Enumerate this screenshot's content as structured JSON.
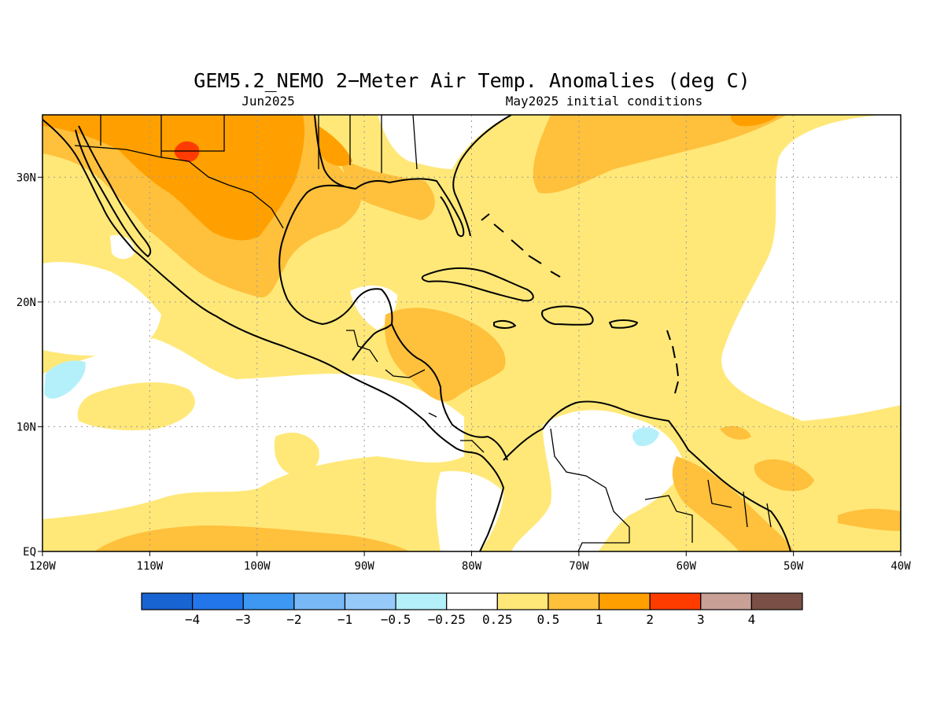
{
  "title": "GEM5.2_NEMO 2−Meter Air Temp. Anomalies (deg C)",
  "subtitle_left": "Jun2025",
  "subtitle_right": "May2025 initial conditions",
  "map": {
    "lon_range": [
      -120,
      -40
    ],
    "lat_range": [
      0,
      35
    ],
    "x_ticks": [
      {
        "lon": -120,
        "label": "120W"
      },
      {
        "lon": -110,
        "label": "110W"
      },
      {
        "lon": -100,
        "label": "100W"
      },
      {
        "lon": -90,
        "label": "90W"
      },
      {
        "lon": -80,
        "label": "80W"
      },
      {
        "lon": -70,
        "label": "70W"
      },
      {
        "lon": -60,
        "label": "60W"
      },
      {
        "lon": -50,
        "label": "50W"
      },
      {
        "lon": -40,
        "label": "40W"
      }
    ],
    "y_ticks": [
      {
        "lat": 0,
        "label": "EQ"
      },
      {
        "lat": 10,
        "label": "10N"
      },
      {
        "lat": 20,
        "label": "20N"
      },
      {
        "lat": 30,
        "label": "30N"
      }
    ],
    "grid": true
  },
  "colorbar": {
    "colors": [
      "#1864d2",
      "#2276ea",
      "#3c98f2",
      "#78b8f7",
      "#96caf9",
      "#b4f0fa",
      "#ffffff",
      "#ffe878",
      "#ffc03c",
      "#ffa000",
      "#ff3c00",
      "#c8a096",
      "#7a5046"
    ],
    "labels": [
      "−4",
      "−3",
      "−2",
      "−1",
      "−0.5",
      "−0.25",
      "0.25",
      "0.5",
      "1",
      "2",
      "3",
      "4"
    ]
  },
  "palette": {
    "l1": "#ffe878",
    "l2": "#ffc03c",
    "l3": "#ffa000",
    "l4": "#ff3c00",
    "cool": "#b4f0fa"
  }
}
